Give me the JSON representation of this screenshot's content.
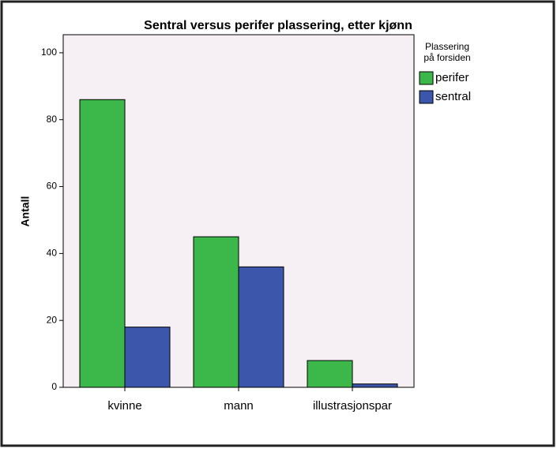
{
  "chart_data": {
    "type": "bar",
    "title": "Sentral versus perifer plassering, etter kjønn",
    "y_label": "Antall",
    "legend_title": [
      "Plassering",
      "på forsiden"
    ],
    "categories": [
      "kvinne",
      "mann",
      "illustrasjonspar"
    ],
    "series": [
      {
        "name": "perifer",
        "color": "#3cb84a",
        "values": [
          86,
          45,
          8
        ]
      },
      {
        "name": "sentral",
        "color": "#3b56aa",
        "values": [
          18,
          36,
          1
        ]
      }
    ],
    "ylim": [
      0,
      105.4
    ],
    "yticks": [
      0,
      20,
      40,
      60,
      80,
      100
    ],
    "grid": false,
    "legend": "right"
  }
}
